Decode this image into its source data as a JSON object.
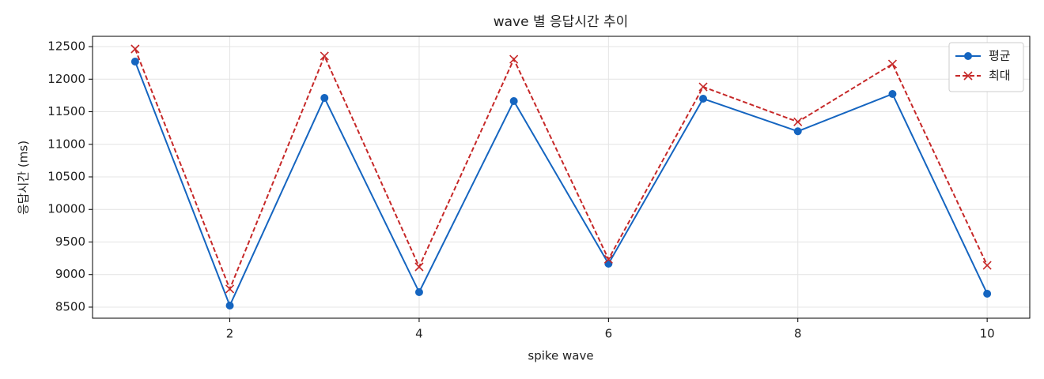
{
  "chart_data": {
    "type": "line",
    "title": "wave 별 응답시간 추이",
    "x_label": "spike wave",
    "y_label": "응답시간 (ms)",
    "x": [
      1,
      2,
      3,
      4,
      5,
      6,
      7,
      8,
      9,
      10
    ],
    "series": [
      {
        "name": "평균",
        "color": "#1565c0",
        "marker": "o",
        "linestyle": "solid",
        "values": [
          12270,
          8524,
          11712,
          8730,
          11664,
          9167,
          11700,
          11200,
          11773,
          8706
        ]
      },
      {
        "name": "최대",
        "color": "#c62828",
        "marker": "x",
        "linestyle": "dashed",
        "values": [
          12464,
          8779,
          12355,
          9118,
          12306,
          9236,
          11882,
          11345,
          12233,
          9142
        ]
      }
    ],
    "xlim": [
      0.55,
      10.45
    ],
    "xticks": [
      2,
      4,
      6,
      8,
      10
    ],
    "ylim": [
      8330,
      12658
    ],
    "yticks": [
      8500,
      9000,
      9500,
      10000,
      10500,
      11000,
      11500,
      12000,
      12500
    ],
    "grid": true,
    "legend": "upper right"
  }
}
